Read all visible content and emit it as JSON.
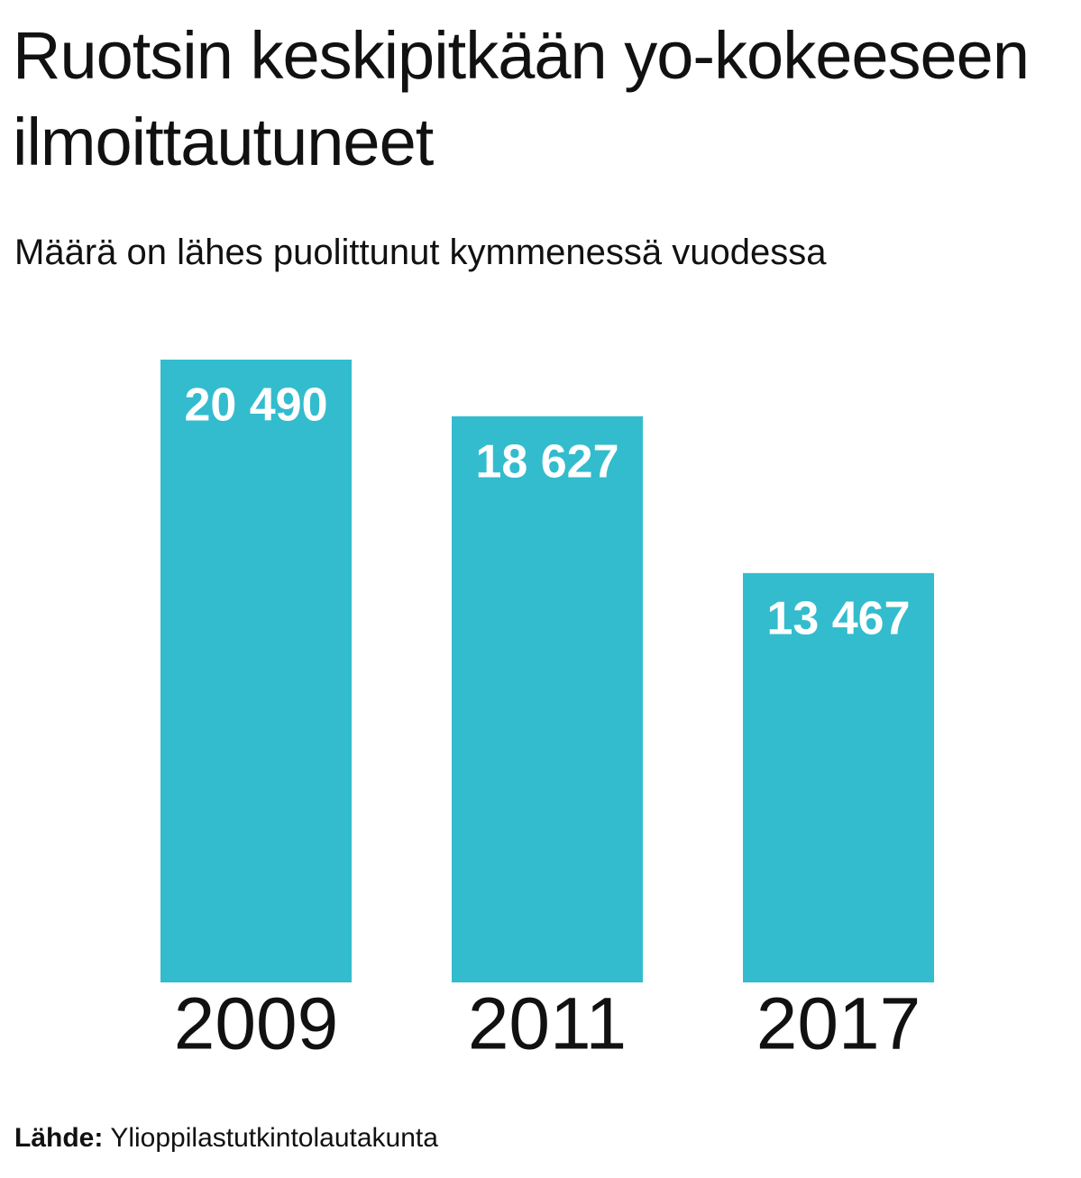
{
  "chart_data": {
    "type": "bar",
    "title": "Ruotsin keskipitkään yo-kokeeseen ilmoittautuneet",
    "subtitle": "Määrä on lähes puolittunut kymmenessä vuodessa",
    "categories": [
      "2009",
      "2011",
      "2017"
    ],
    "values": [
      20490,
      18627,
      13467
    ],
    "value_labels": [
      "20 490",
      "18 627",
      "13 467"
    ],
    "color": "#33bccd",
    "source_label": "Lähde:",
    "source": "Ylioppilastutkintolautakunta"
  }
}
